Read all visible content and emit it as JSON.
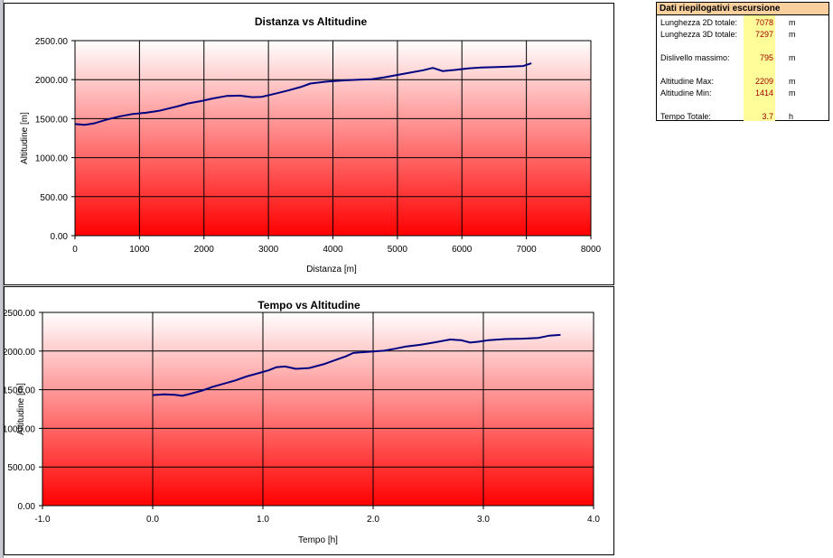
{
  "chart_data": [
    {
      "type": "line",
      "title": "Distanza vs Altitudine",
      "xlabel": "Distanza [m]",
      "ylabel": "Altitudine [m]",
      "xlim": [
        0,
        8000
      ],
      "ylim": [
        0,
        2500
      ],
      "x_ticks": [
        "0",
        "1000",
        "2000",
        "3000",
        "4000",
        "5000",
        "6000",
        "7000",
        "8000"
      ],
      "y_ticks": [
        "0.00",
        "500.00",
        "1000.00",
        "1500.00",
        "2000.00",
        "2500.00"
      ],
      "grid": true,
      "background": "gradient red (bottom) to white (top)",
      "series": [
        {
          "color": "#000080",
          "x": [
            0,
            150,
            300,
            500,
            700,
            900,
            1100,
            1300,
            1450,
            1600,
            1750,
            1950,
            2150,
            2350,
            2550,
            2750,
            2900,
            3100,
            3300,
            3500,
            3650,
            3900,
            4150,
            4400,
            4600,
            4800,
            5000,
            5200,
            5400,
            5550,
            5700,
            5900,
            6100,
            6300,
            6500,
            6700,
            6950,
            7078
          ],
          "y": [
            1430,
            1420,
            1440,
            1490,
            1530,
            1560,
            1575,
            1600,
            1630,
            1660,
            1695,
            1725,
            1760,
            1790,
            1795,
            1775,
            1780,
            1820,
            1860,
            1905,
            1950,
            1975,
            1990,
            2000,
            2005,
            2030,
            2060,
            2090,
            2120,
            2150,
            2110,
            2125,
            2145,
            2155,
            2160,
            2165,
            2175,
            2209
          ]
        }
      ]
    },
    {
      "type": "line",
      "title": "Tempo vs Altitudine",
      "xlabel": "Tempo [h]",
      "ylabel": "Altitudine [m]",
      "xlim": [
        -1,
        4
      ],
      "ylim": [
        0,
        2500
      ],
      "x_ticks": [
        "-1.0",
        "0.0",
        "1.0",
        "2.0",
        "3.0",
        "4.0"
      ],
      "y_ticks": [
        "0.00",
        "500.00",
        "1000.00",
        "1500.00",
        "2000.00",
        "2500.00"
      ],
      "grid": true,
      "background": "gradient red (bottom) to white (top)",
      "series": [
        {
          "color": "#000080",
          "x": [
            0,
            0.1,
            0.2,
            0.27,
            0.35,
            0.45,
            0.55,
            0.65,
            0.75,
            0.85,
            0.95,
            1.05,
            1.12,
            1.2,
            1.3,
            1.42,
            1.55,
            1.65,
            1.75,
            1.82,
            1.9,
            2.0,
            2.1,
            2.2,
            2.3,
            2.42,
            2.55,
            2.7,
            2.8,
            2.88,
            2.95,
            3.05,
            3.2,
            3.35,
            3.5,
            3.6,
            3.7
          ],
          "y": [
            1430,
            1440,
            1435,
            1420,
            1450,
            1490,
            1540,
            1580,
            1620,
            1670,
            1710,
            1750,
            1790,
            1800,
            1770,
            1780,
            1830,
            1880,
            1930,
            1975,
            1985,
            1995,
            2005,
            2030,
            2060,
            2080,
            2110,
            2150,
            2140,
            2110,
            2120,
            2140,
            2155,
            2160,
            2170,
            2200,
            2209
          ]
        }
      ]
    }
  ],
  "summary": {
    "title": "Dati riepilogativi escursione",
    "rows": [
      {
        "label": "Lunghezza 2D totale:",
        "value": "7078",
        "unit": "m"
      },
      {
        "label": "Lunghezza 3D totale:",
        "value": "7297",
        "unit": "m"
      },
      {
        "label": "Dislivello massimo:",
        "value": "795",
        "unit": "m"
      },
      {
        "label": "Altitudine Max:",
        "value": "2209",
        "unit": "m"
      },
      {
        "label": "Altitudine Min:",
        "value": "1414",
        "unit": "m"
      },
      {
        "label": "Tempo Totale:",
        "value": "3.7",
        "unit": "h"
      }
    ]
  }
}
